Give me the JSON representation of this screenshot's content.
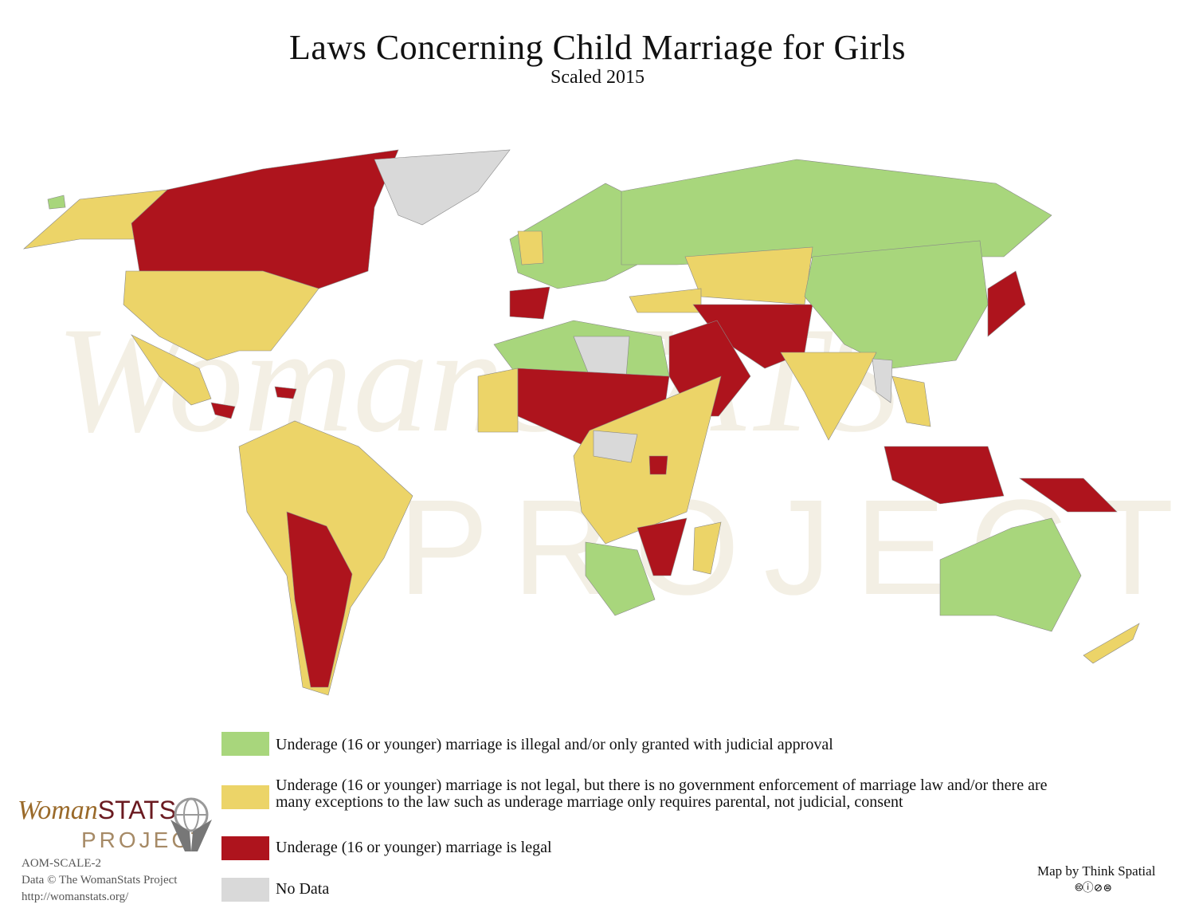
{
  "title": "Laws Concerning Child Marriage for Girls",
  "subtitle": "Scaled 2015",
  "legend": [
    {
      "category": "green",
      "color": "#a8d67c",
      "label": "Underage (16 or younger) marriage is illegal and/or only granted with judicial approval"
    },
    {
      "category": "yellow",
      "color": "#ecd468",
      "label": "Underage (16 or younger) marriage is not legal, but there is no government enforcement of marriage law and/or there are many exceptions to the law such as underage marriage only requires parental, not judicial, consent"
    },
    {
      "category": "red",
      "color": "#ae141d",
      "label": "Underage (16 or younger) marriage is legal"
    },
    {
      "category": "gray",
      "color": "#d9d9d9",
      "label": "No Data"
    }
  ],
  "watermark": {
    "line1": "WomanSTATS",
    "line2": "PROJECT"
  },
  "logo": {
    "word1": "Woman",
    "word2": "STATS",
    "word3": "PROJECT",
    "icon": "globe-in-hands-icon"
  },
  "credits": {
    "code": "AOM-SCALE-2",
    "data": "Data © The WomanStats Project",
    "url": "http://womanstats.org/"
  },
  "map_by": "Map by Think Spatial",
  "license_icons": [
    "cc-icon",
    "by-icon",
    "nc-icon",
    "nd-icon"
  ]
}
